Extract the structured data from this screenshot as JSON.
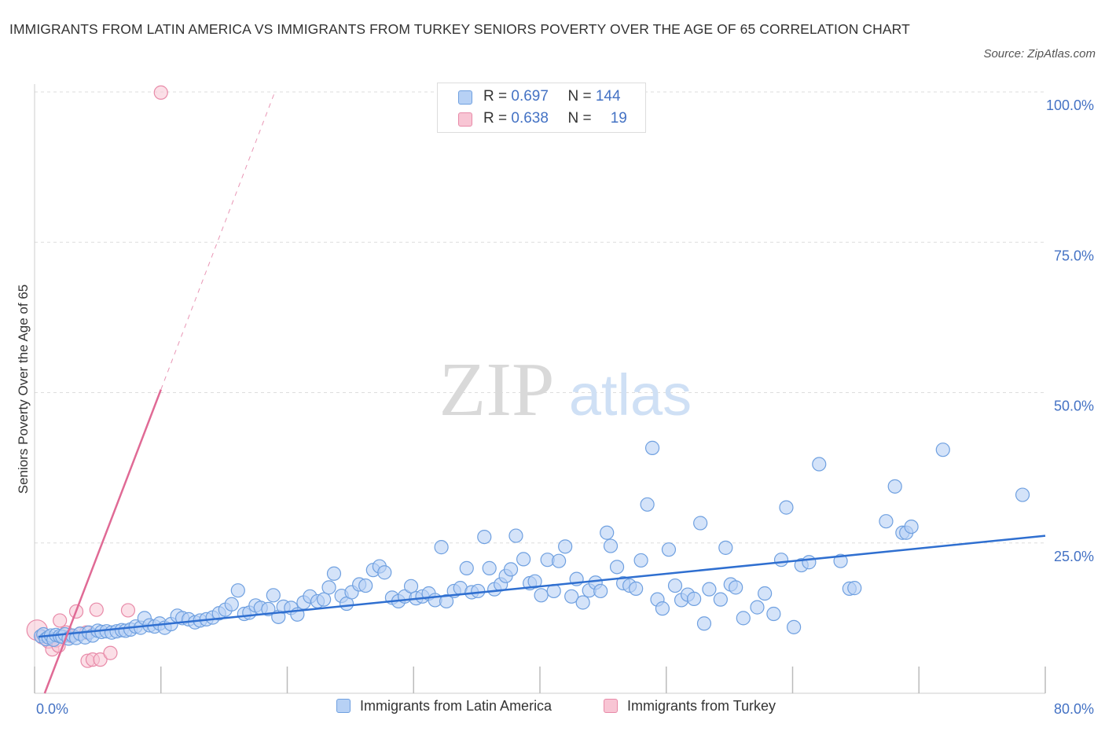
{
  "header": {
    "title": "IMMIGRANTS FROM LATIN AMERICA VS IMMIGRANTS FROM TURKEY SENIORS POVERTY OVER THE AGE OF 65 CORRELATION CHART",
    "source": "Source: ZipAtlas.com"
  },
  "watermark": {
    "part1": "ZIP",
    "part2": "atlas"
  },
  "legend": {
    "rows": [
      {
        "r_label": "R = ",
        "r_value": "0.697",
        "n_label": "N = ",
        "n_value": "144"
      },
      {
        "r_label": "R = ",
        "r_value": "0.638",
        "n_label": "N = ",
        "n_value": "19"
      }
    ]
  },
  "colors": {
    "blue_fill": "#b7d1f5",
    "blue_stroke": "#6fa0e0",
    "blue_line": "#2f6fd0",
    "pink_fill": "#f8c5d4",
    "pink_stroke": "#e88aa8",
    "pink_line": "#e06a95",
    "axis_text": "#4472c4",
    "grid": "#dddddd"
  },
  "chart_data": {
    "type": "scatter",
    "title": "IMMIGRANTS FROM LATIN AMERICA VS IMMIGRANTS FROM TURKEY SENIORS POVERTY OVER THE AGE OF 65 CORRELATION CHART",
    "xlabel": "",
    "ylabel": "Seniors Poverty Over the Age of 65",
    "xlim": [
      0,
      80
    ],
    "ylim": [
      0,
      100
    ],
    "x_tick_labels": [
      "0.0%",
      "80.0%"
    ],
    "y_tick_labels": [
      "25.0%",
      "50.0%",
      "75.0%",
      "100.0%"
    ],
    "y_ticks": [
      25,
      50,
      75,
      100
    ],
    "grid": true,
    "legend_position": "bottom",
    "series": [
      {
        "name": "Immigrants from Latin America",
        "R": 0.697,
        "N": 144,
        "trend": {
          "x": [
            0.3,
            80
          ],
          "y": [
            9.4,
            26.2
          ]
        },
        "points": [
          [
            0.5,
            9.5
          ],
          [
            0.7,
            9.8
          ],
          [
            0.9,
            9
          ],
          [
            1.1,
            9.3
          ],
          [
            1.3,
            9.6
          ],
          [
            1.5,
            8.9
          ],
          [
            1.7,
            9.7
          ],
          [
            2,
            9.5
          ],
          [
            2.2,
            9.4
          ],
          [
            2.4,
            9.8
          ],
          [
            2.7,
            9.1
          ],
          [
            3,
            9.6
          ],
          [
            3.3,
            9.2
          ],
          [
            3.6,
            9.9
          ],
          [
            4,
            9.3
          ],
          [
            4.3,
            10.1
          ],
          [
            4.6,
            9.6
          ],
          [
            5,
            10.4
          ],
          [
            5.3,
            10.2
          ],
          [
            5.7,
            10.3
          ],
          [
            6.1,
            10.1
          ],
          [
            6.5,
            10.3
          ],
          [
            6.9,
            10.5
          ],
          [
            7.2,
            10.4
          ],
          [
            7.6,
            10.6
          ],
          [
            8,
            11.1
          ],
          [
            8.4,
            10.9
          ],
          [
            8.7,
            12.5
          ],
          [
            9.1,
            11.3
          ],
          [
            9.5,
            11.1
          ],
          [
            9.9,
            11.6
          ],
          [
            10.3,
            10.9
          ],
          [
            10.8,
            11.5
          ],
          [
            11.3,
            12.9
          ],
          [
            11.7,
            12.5
          ],
          [
            12.2,
            12.3
          ],
          [
            12.7,
            11.8
          ],
          [
            13.1,
            12.1
          ],
          [
            13.6,
            12.3
          ],
          [
            14.1,
            12.6
          ],
          [
            14.6,
            13.3
          ],
          [
            15.1,
            13.9
          ],
          [
            15.6,
            14.8
          ],
          [
            16.1,
            17.1
          ],
          [
            16.6,
            13.2
          ],
          [
            17,
            13.4
          ],
          [
            17.5,
            14.6
          ],
          [
            17.9,
            14.2
          ],
          [
            18.5,
            14
          ],
          [
            18.9,
            16.3
          ],
          [
            19.3,
            12.7
          ],
          [
            19.7,
            14.4
          ],
          [
            20.3,
            14.2
          ],
          [
            20.8,
            13.1
          ],
          [
            21.3,
            15.1
          ],
          [
            21.8,
            16.1
          ],
          [
            22.4,
            15.3
          ],
          [
            22.9,
            15.6
          ],
          [
            23.3,
            17.6
          ],
          [
            23.7,
            19.9
          ],
          [
            24.3,
            16.2
          ],
          [
            24.7,
            14.9
          ],
          [
            25.1,
            16.8
          ],
          [
            25.7,
            18.1
          ],
          [
            26.2,
            17.9
          ],
          [
            26.8,
            20.5
          ],
          [
            27.3,
            21.1
          ],
          [
            27.7,
            20.1
          ],
          [
            28.3,
            15.9
          ],
          [
            28.8,
            15.3
          ],
          [
            29.3,
            16.1
          ],
          [
            29.8,
            17.8
          ],
          [
            30.2,
            15.8
          ],
          [
            30.7,
            16.1
          ],
          [
            31.2,
            16.6
          ],
          [
            31.7,
            15.5
          ],
          [
            32.2,
            24.3
          ],
          [
            32.6,
            15.3
          ],
          [
            33.2,
            17
          ],
          [
            33.7,
            17.5
          ],
          [
            34.2,
            20.8
          ],
          [
            34.6,
            16.8
          ],
          [
            35.1,
            17
          ],
          [
            35.6,
            26
          ],
          [
            36,
            20.8
          ],
          [
            36.4,
            17.3
          ],
          [
            36.9,
            18.1
          ],
          [
            37.3,
            19.5
          ],
          [
            37.7,
            20.6
          ],
          [
            38.1,
            26.2
          ],
          [
            38.7,
            22.3
          ],
          [
            39.2,
            18.3
          ],
          [
            39.6,
            18.6
          ],
          [
            40.1,
            16.3
          ],
          [
            40.6,
            22.2
          ],
          [
            41.1,
            17
          ],
          [
            41.5,
            22
          ],
          [
            42,
            24.4
          ],
          [
            42.5,
            16.1
          ],
          [
            42.9,
            19
          ],
          [
            43.4,
            15.1
          ],
          [
            43.9,
            17.1
          ],
          [
            44.4,
            18.4
          ],
          [
            44.8,
            17
          ],
          [
            45.3,
            26.7
          ],
          [
            45.6,
            24.5
          ],
          [
            46.1,
            21
          ],
          [
            46.6,
            18.3
          ],
          [
            47.1,
            17.9
          ],
          [
            47.6,
            17.4
          ],
          [
            48,
            22.1
          ],
          [
            48.5,
            31.4
          ],
          [
            48.9,
            40.8
          ],
          [
            49.3,
            15.6
          ],
          [
            49.7,
            14.1
          ],
          [
            50.2,
            23.9
          ],
          [
            50.7,
            17.9
          ],
          [
            51.2,
            15.5
          ],
          [
            51.7,
            16.4
          ],
          [
            52.2,
            15.7
          ],
          [
            52.7,
            28.3
          ],
          [
            53,
            11.6
          ],
          [
            53.4,
            17.3
          ],
          [
            54.3,
            15.6
          ],
          [
            54.7,
            24.2
          ],
          [
            55.1,
            18.1
          ],
          [
            55.5,
            17.6
          ],
          [
            56.1,
            12.5
          ],
          [
            57.2,
            14.3
          ],
          [
            57.8,
            16.6
          ],
          [
            58.5,
            13.2
          ],
          [
            59.1,
            22.2
          ],
          [
            59.5,
            30.9
          ],
          [
            60.1,
            11
          ],
          [
            60.7,
            21.3
          ],
          [
            61.3,
            21.8
          ],
          [
            62.1,
            38.1
          ],
          [
            63.8,
            22
          ],
          [
            64.5,
            17.4
          ],
          [
            64.9,
            17.5
          ],
          [
            67.4,
            28.6
          ],
          [
            68.1,
            34.4
          ],
          [
            68.7,
            26.7
          ],
          [
            69,
            26.7
          ],
          [
            69.4,
            27.7
          ],
          [
            71.9,
            40.5
          ],
          [
            78.2,
            33
          ]
        ]
      },
      {
        "name": "Immigrants from Turkey",
        "R": 0.638,
        "N": 19,
        "trend": {
          "x": [
            0.8,
            10
          ],
          "y": [
            0,
            50.5
          ]
        },
        "points": [
          [
            0.2,
            10.5
          ],
          [
            0.6,
            9.3
          ],
          [
            1.1,
            8.6
          ],
          [
            1.4,
            7.3
          ],
          [
            1.7,
            8.8
          ],
          [
            2,
            12.1
          ],
          [
            2.5,
            10.1
          ],
          [
            2.9,
            9.5
          ],
          [
            3.3,
            13.6
          ],
          [
            3.6,
            9.9
          ],
          [
            4.1,
            10.1
          ],
          [
            4.2,
            5.4
          ],
          [
            4.6,
            5.6
          ],
          [
            4.9,
            13.9
          ],
          [
            5.2,
            5.6
          ],
          [
            6,
            6.7
          ],
          [
            7.4,
            13.8
          ],
          [
            1.9,
            7.9
          ],
          [
            10,
            99.9
          ]
        ]
      }
    ]
  }
}
